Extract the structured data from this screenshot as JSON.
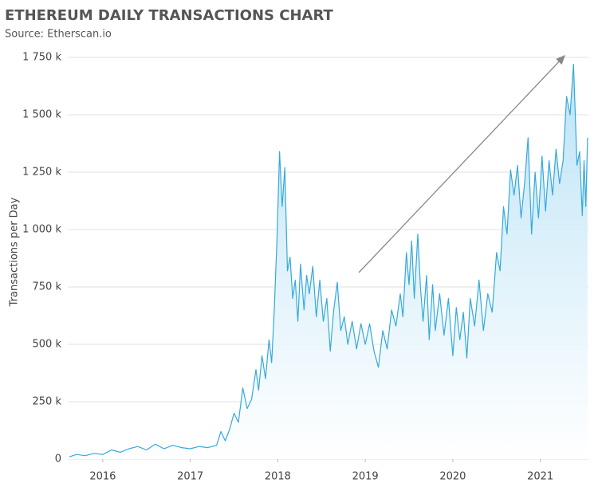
{
  "chart_data": {
    "type": "area",
    "title": "ETHEREUM DAILY TRANSACTIONS CHART",
    "subtitle": "Source: Etherscan.io",
    "y_label": "Transactions per Day",
    "color": "#35a9dc",
    "grid": true,
    "xlim": [
      2015.6,
      2021.55
    ],
    "xticks": [
      2016,
      2017,
      2018,
      2019,
      2020,
      2021
    ],
    "ylim": [
      0,
      1750
    ],
    "yticks": [
      {
        "value": 0,
        "label": "0"
      },
      {
        "value": 250,
        "label": "250 k"
      },
      {
        "value": 500,
        "label": "500 k"
      },
      {
        "value": 750,
        "label": "750 k"
      },
      {
        "value": 1000,
        "label": "1 000 k"
      },
      {
        "value": 1250,
        "label": "1 250 k"
      },
      {
        "value": 1500,
        "label": "1 500 k"
      },
      {
        "value": 1750,
        "label": "1 750 k"
      }
    ],
    "x": [
      2015.62,
      2015.7,
      2015.8,
      2015.9,
      2016.0,
      2016.1,
      2016.2,
      2016.3,
      2016.4,
      2016.5,
      2016.6,
      2016.7,
      2016.8,
      2016.9,
      2017.0,
      2017.1,
      2017.2,
      2017.3,
      2017.35,
      2017.4,
      2017.45,
      2017.5,
      2017.55,
      2017.6,
      2017.65,
      2017.7,
      2017.75,
      2017.78,
      2017.82,
      2017.86,
      2017.9,
      2017.93,
      2017.96,
      2017.99,
      2018.02,
      2018.05,
      2018.08,
      2018.11,
      2018.14,
      2018.17,
      2018.2,
      2018.23,
      2018.26,
      2018.3,
      2018.33,
      2018.36,
      2018.4,
      2018.44,
      2018.48,
      2018.52,
      2018.56,
      2018.6,
      2018.64,
      2018.68,
      2018.72,
      2018.76,
      2018.8,
      2018.85,
      2018.9,
      2018.95,
      2019.0,
      2019.05,
      2019.1,
      2019.15,
      2019.2,
      2019.25,
      2019.3,
      2019.35,
      2019.4,
      2019.43,
      2019.47,
      2019.5,
      2019.53,
      2019.56,
      2019.6,
      2019.63,
      2019.66,
      2019.7,
      2019.73,
      2019.77,
      2019.8,
      2019.85,
      2019.9,
      2019.95,
      2020.0,
      2020.04,
      2020.08,
      2020.12,
      2020.16,
      2020.2,
      2020.25,
      2020.3,
      2020.35,
      2020.4,
      2020.45,
      2020.5,
      2020.54,
      2020.58,
      2020.62,
      2020.66,
      2020.7,
      2020.74,
      2020.78,
      2020.82,
      2020.86,
      2020.9,
      2020.94,
      2020.98,
      2021.02,
      2021.06,
      2021.1,
      2021.14,
      2021.18,
      2021.22,
      2021.26,
      2021.3,
      2021.34,
      2021.38,
      2021.42,
      2021.45,
      2021.48,
      2021.5,
      2021.52,
      2021.54
    ],
    "values": [
      10,
      20,
      15,
      25,
      20,
      40,
      30,
      45,
      55,
      40,
      65,
      45,
      60,
      50,
      45,
      55,
      50,
      60,
      120,
      80,
      130,
      200,
      160,
      310,
      220,
      260,
      390,
      300,
      450,
      350,
      520,
      420,
      650,
      950,
      1340,
      1100,
      1270,
      820,
      880,
      700,
      780,
      600,
      850,
      650,
      800,
      720,
      840,
      620,
      780,
      600,
      700,
      470,
      650,
      770,
      560,
      620,
      500,
      600,
      480,
      590,
      500,
      590,
      470,
      400,
      560,
      480,
      650,
      580,
      720,
      620,
      900,
      760,
      950,
      700,
      980,
      750,
      600,
      800,
      520,
      760,
      560,
      720,
      540,
      700,
      450,
      660,
      520,
      640,
      440,
      700,
      580,
      780,
      560,
      720,
      640,
      900,
      820,
      1100,
      980,
      1260,
      1150,
      1280,
      1050,
      1200,
      1400,
      980,
      1250,
      1050,
      1320,
      1080,
      1300,
      1150,
      1350,
      1200,
      1300,
      1580,
      1500,
      1720,
      1280,
      1340,
      1060,
      1300,
      1100,
      1400
    ]
  }
}
